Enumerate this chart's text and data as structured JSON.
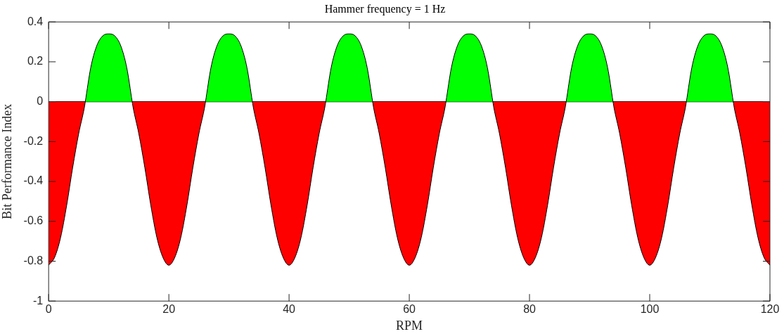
{
  "chart_data": {
    "type": "area",
    "title": "Hammer frequency = 1 Hz",
    "xlabel": "RPM",
    "ylabel": "Bit Performance Index",
    "xlim": [
      0,
      120
    ],
    "xticks": [
      0,
      20,
      40,
      60,
      80,
      100,
      120
    ],
    "ylim": [
      -1,
      0.4
    ],
    "yticks": [
      -1,
      -0.8,
      -0.6,
      -0.4,
      -0.2,
      0,
      0.2,
      0.4
    ],
    "grid": false,
    "legend": false,
    "ref_lines": [
      {
        "axis": "y",
        "value": 0,
        "color": "#000000"
      }
    ],
    "series": [
      {
        "color": "#00ff00",
        "x": [
          6.1,
          7,
          8,
          9,
          10,
          11,
          12,
          13,
          13.9,
          20,
          26.1,
          27,
          28,
          29,
          30,
          31,
          32,
          33,
          33.9,
          40,
          46.1,
          47,
          48,
          49,
          50,
          51,
          52,
          53,
          53.9,
          60,
          66.1,
          67,
          68,
          69,
          70,
          71,
          72,
          73,
          73.9,
          80,
          86.1,
          87,
          88,
          89,
          90,
          91,
          92,
          93,
          93.9,
          100,
          106.1,
          107,
          108,
          109,
          110,
          111,
          112,
          113,
          113.9
        ],
        "values": [
          0,
          0.17,
          0.28,
          0.33,
          0.34,
          0.33,
          0.28,
          0.17,
          0,
          null,
          0,
          0.17,
          0.28,
          0.33,
          0.34,
          0.33,
          0.28,
          0.17,
          0,
          null,
          0,
          0.17,
          0.28,
          0.33,
          0.34,
          0.33,
          0.28,
          0.17,
          0,
          null,
          0,
          0.17,
          0.28,
          0.33,
          0.34,
          0.33,
          0.28,
          0.17,
          0,
          null,
          0,
          0.17,
          0.28,
          0.33,
          0.34,
          0.33,
          0.28,
          0.17,
          0,
          null,
          0,
          0.17,
          0.28,
          0.33,
          0.34,
          0.33,
          0.28,
          0.17,
          0
        ]
      },
      {
        "color": "#ff0000",
        "x": [
          0,
          1,
          2,
          3,
          4,
          5,
          6,
          6.1,
          10,
          13.9,
          14,
          15,
          16,
          17,
          18,
          19,
          20,
          21,
          22,
          23,
          24,
          25,
          26,
          26.1,
          30,
          33.9,
          34,
          35,
          36,
          37,
          38,
          39,
          40,
          41,
          42,
          43,
          44,
          45,
          46,
          46.1,
          50,
          53.9,
          54,
          55,
          56,
          57,
          58,
          59,
          60,
          61,
          62,
          63,
          64,
          65,
          66,
          66.1,
          70,
          73.9,
          74,
          75,
          76,
          77,
          78,
          79,
          80,
          81,
          82,
          83,
          84,
          85,
          86,
          86.1,
          90,
          93.9,
          94,
          95,
          96,
          97,
          98,
          99,
          100,
          101,
          102,
          103,
          104,
          105,
          106,
          106.1,
          110,
          113.9,
          114,
          115,
          116,
          117,
          118,
          119,
          120
        ],
        "values": [
          -0.82,
          -0.78,
          -0.68,
          -0.52,
          -0.33,
          -0.16,
          -0.02,
          0,
          null,
          0,
          -0.02,
          -0.16,
          -0.33,
          -0.52,
          -0.68,
          -0.78,
          -0.82,
          -0.78,
          -0.68,
          -0.52,
          -0.33,
          -0.16,
          -0.02,
          0,
          null,
          0,
          -0.02,
          -0.16,
          -0.33,
          -0.52,
          -0.68,
          -0.78,
          -0.82,
          -0.78,
          -0.68,
          -0.52,
          -0.33,
          -0.16,
          -0.02,
          0,
          null,
          0,
          -0.02,
          -0.16,
          -0.33,
          -0.52,
          -0.68,
          -0.78,
          -0.82,
          -0.78,
          -0.68,
          -0.52,
          -0.33,
          -0.16,
          -0.02,
          0,
          null,
          0,
          -0.02,
          -0.16,
          -0.33,
          -0.52,
          -0.68,
          -0.78,
          -0.82,
          -0.78,
          -0.68,
          -0.52,
          -0.33,
          -0.16,
          -0.02,
          0,
          null,
          0,
          -0.02,
          -0.16,
          -0.33,
          -0.52,
          -0.68,
          -0.78,
          -0.82,
          -0.78,
          -0.68,
          -0.52,
          -0.33,
          -0.16,
          -0.02,
          0,
          null,
          0,
          -0.02,
          -0.16,
          -0.33,
          -0.52,
          -0.68,
          -0.78,
          -0.82
        ]
      }
    ]
  }
}
